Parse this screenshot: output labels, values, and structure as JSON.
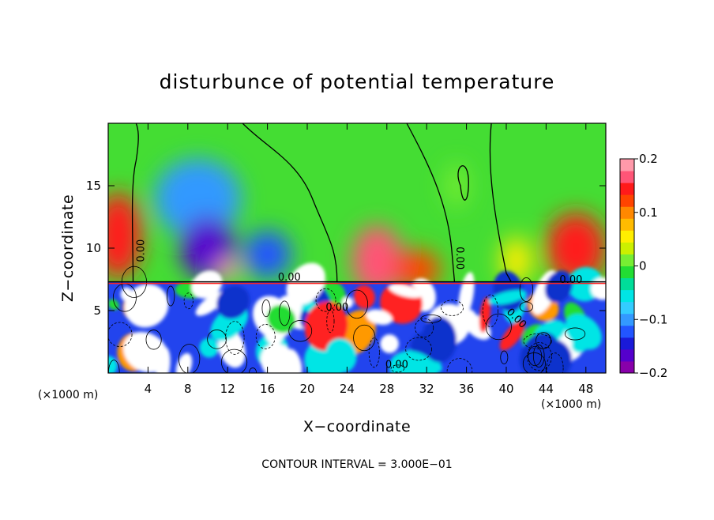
{
  "chart_data": {
    "type": "heatmap",
    "title": "disturbunce of potential temperature",
    "xlabel": "X−coordinate",
    "ylabel": "Z−coordinate",
    "x_unit": "(×1000 m)",
    "x_range": [
      0,
      50
    ],
    "z_range": [
      0,
      20
    ],
    "x_ticks": [
      4,
      8,
      12,
      16,
      20,
      24,
      28,
      32,
      36,
      40,
      44,
      48
    ],
    "z_ticks": [
      5,
      10,
      15
    ],
    "contour_interval_label": "CONTOUR INTERVAL = 3.000E−01",
    "contour_label": "0.00",
    "colorbar": {
      "ticks": [
        0.2,
        0.1,
        0,
        -0.1,
        -0.2
      ],
      "tick_labels": [
        "0.2",
        "0.1",
        "0",
        "−0.1",
        "−0.2"
      ],
      "range": [
        -0.2,
        0.2
      ],
      "colors": [
        "#8800aa",
        "#5500cc",
        "#1a1ad8",
        "#2255ff",
        "#3399ff",
        "#33ccff",
        "#00e5e5",
        "#00dd99",
        "#22dd33",
        "#77ee33",
        "#ccf000",
        "#ffee00",
        "#ffbb00",
        "#ff8800",
        "#ff4400",
        "#ff1a1a",
        "#ff5577",
        "#ff99aa"
      ]
    },
    "upper_field": {
      "background_value": 0.0,
      "features": [
        {
          "x": 1,
          "z": 11,
          "value": 0.14
        },
        {
          "x": 9,
          "z": 14,
          "value": -0.09
        },
        {
          "x": 10,
          "z": 10,
          "value": -0.16
        },
        {
          "x": 12,
          "z": 8.3,
          "value": 0.18
        },
        {
          "x": 16,
          "z": 9.5,
          "value": -0.12
        },
        {
          "x": 27,
          "z": 9,
          "value": 0.16
        },
        {
          "x": 31,
          "z": 8.3,
          "value": 0.12
        },
        {
          "x": 35,
          "z": 15,
          "value": 0.02
        },
        {
          "x": 41,
          "z": 9,
          "value": 0.06
        },
        {
          "x": 47,
          "z": 10,
          "value": 0.15
        }
      ]
    },
    "lower_layer": {
      "top_z": 7.3,
      "description_value": "turbulent layer with values beyond ±0.2"
    }
  }
}
